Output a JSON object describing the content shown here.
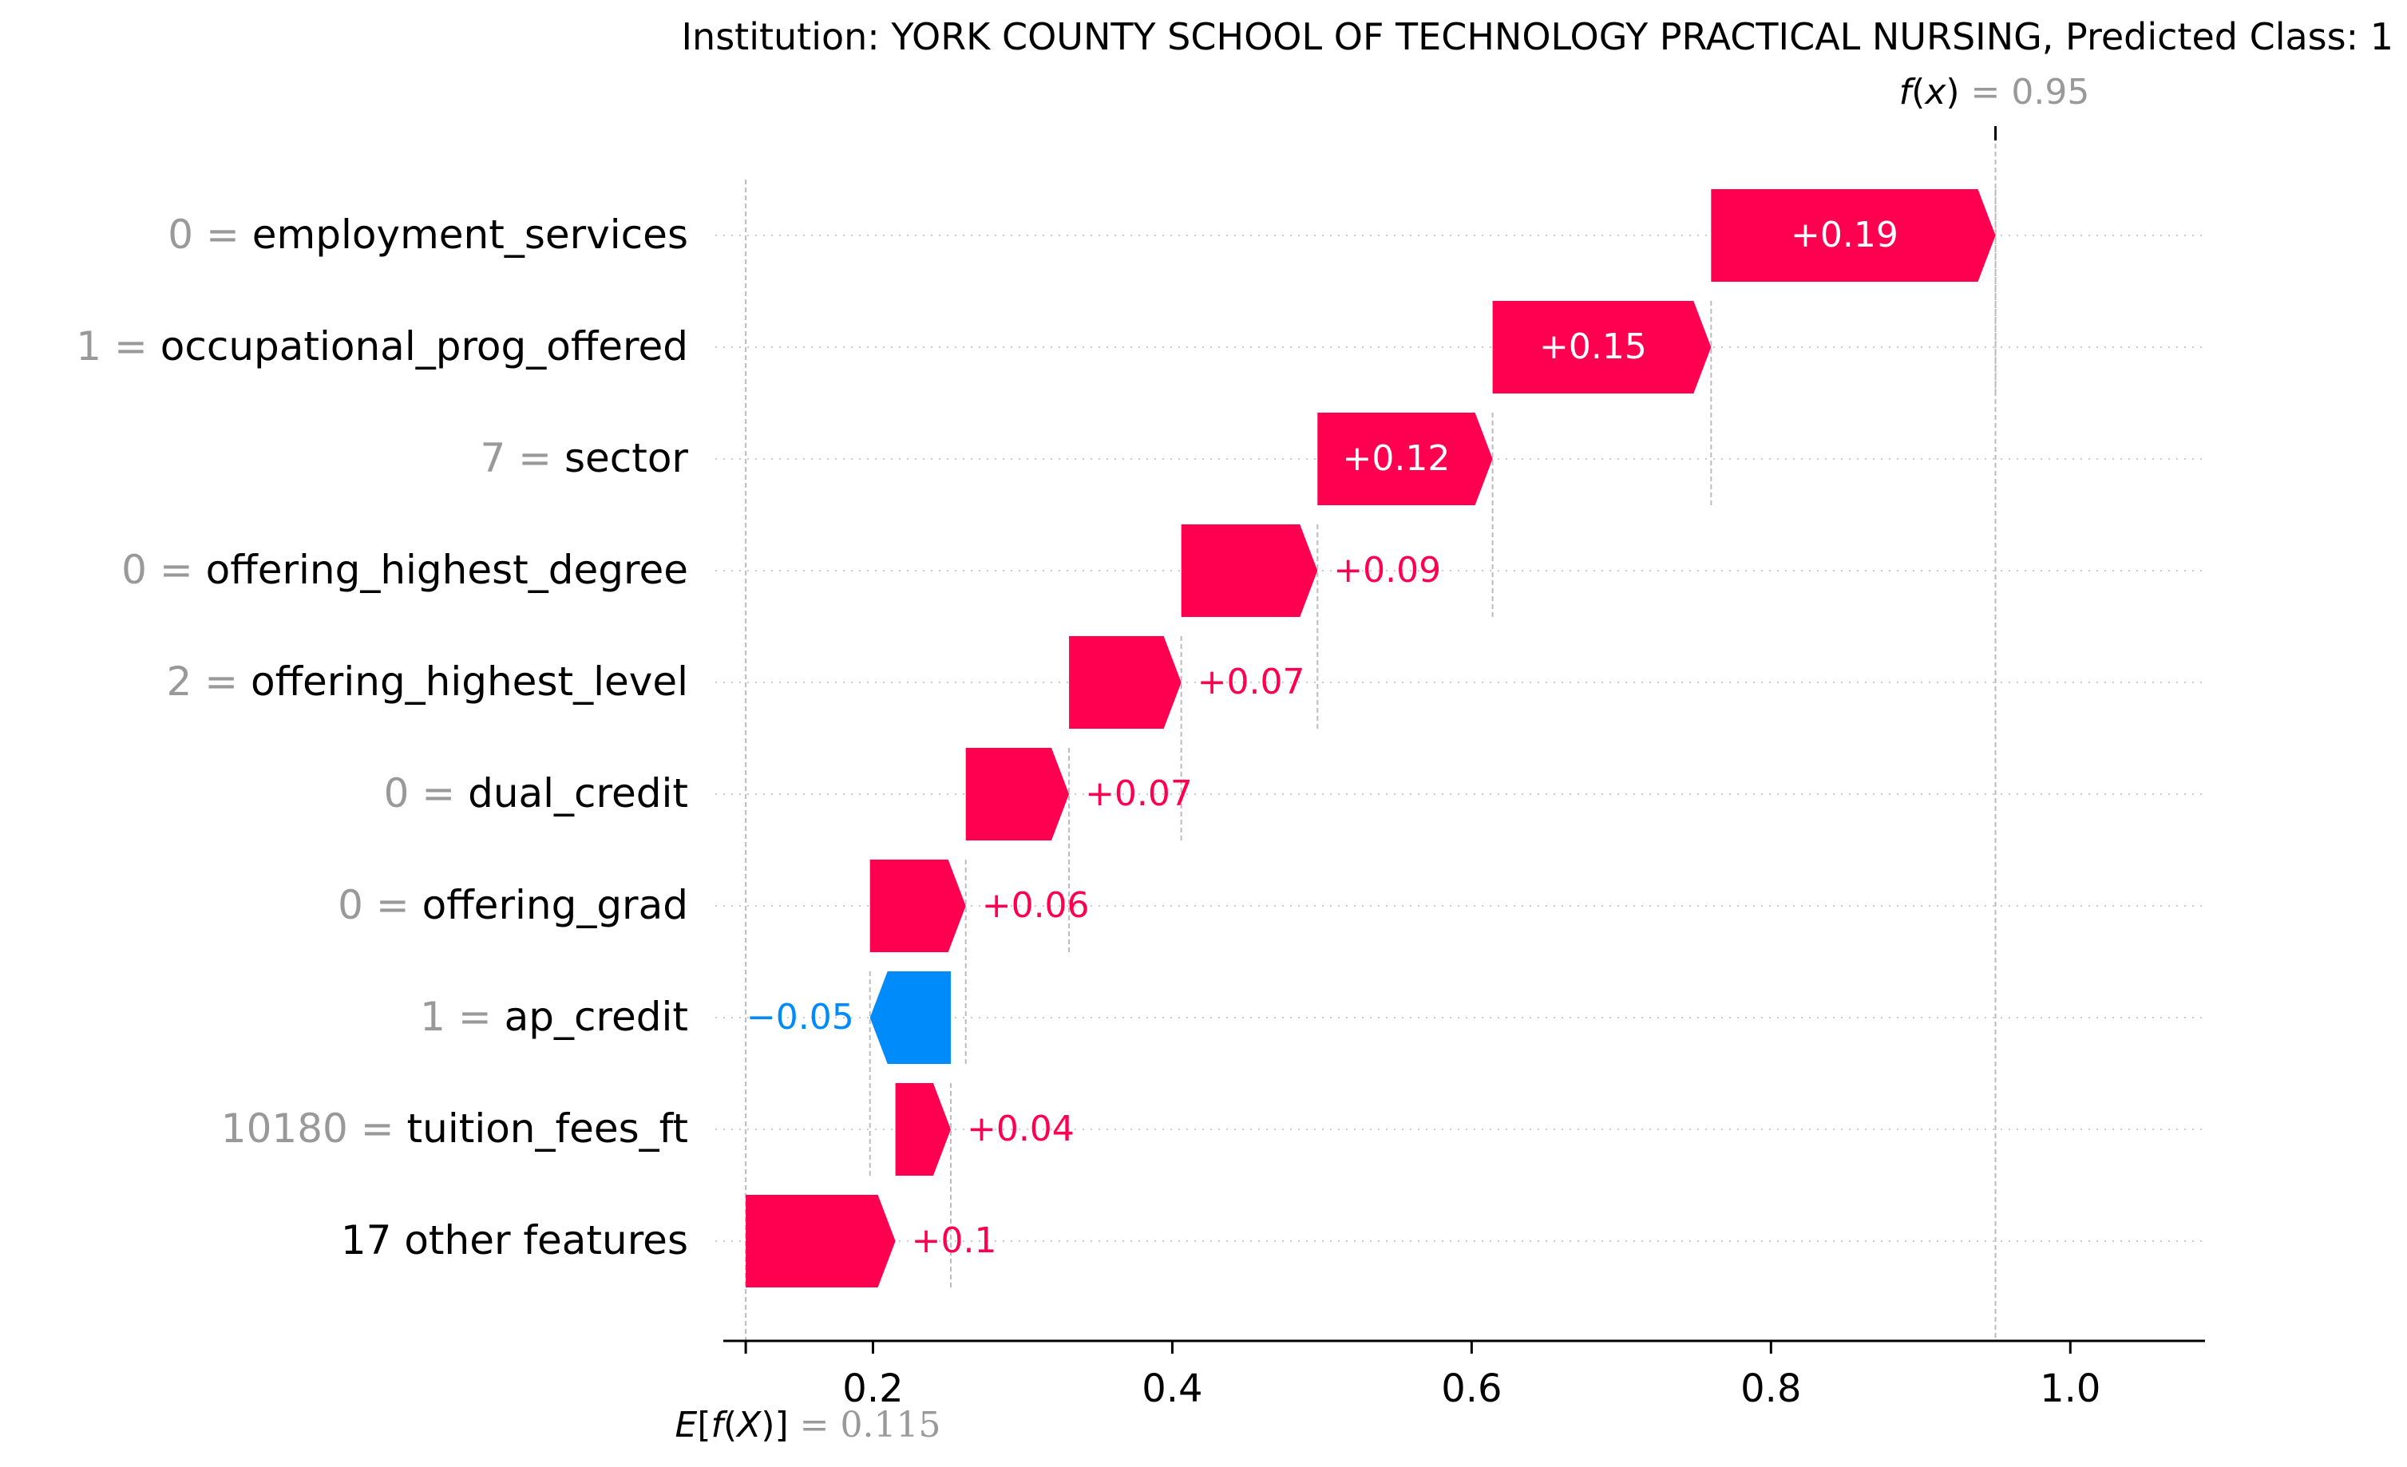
{
  "chart_data": {
    "type": "waterfall",
    "title": "Institution: YORK COUNTY SCHOOL OF TECHNOLOGY PRACTICAL NURSING, Predicted Class: 1",
    "base_value": 0.115,
    "base_value_label": "= 0.115",
    "output_value": 0.95,
    "output_value_label": "= 0.95",
    "xlim": [
      0.1,
      1.09
    ],
    "xticks": [
      {
        "value": 0.2,
        "label": "0.2"
      },
      {
        "value": 0.4,
        "label": "0.4"
      },
      {
        "value": 0.6,
        "label": "0.6"
      },
      {
        "value": 0.8,
        "label": "0.8"
      },
      {
        "value": 1.0,
        "label": "1.0"
      }
    ],
    "features": [
      {
        "feature_value": "0",
        "name": "employment_services",
        "start": 0.76,
        "end": 0.95,
        "label": "+0.19"
      },
      {
        "feature_value": "1",
        "name": "occupational_prog_offered",
        "start": 0.614,
        "end": 0.76,
        "label": "+0.15"
      },
      {
        "feature_value": "7",
        "name": "sector",
        "start": 0.497,
        "end": 0.614,
        "label": "+0.12"
      },
      {
        "feature_value": "0",
        "name": "offering_highest_degree",
        "start": 0.406,
        "end": 0.497,
        "label": "+0.09"
      },
      {
        "feature_value": "2",
        "name": "offering_highest_level",
        "start": 0.331,
        "end": 0.406,
        "label": "+0.07"
      },
      {
        "feature_value": "0",
        "name": "dual_credit",
        "start": 0.262,
        "end": 0.331,
        "label": "+0.07"
      },
      {
        "feature_value": "0",
        "name": "offering_grad",
        "start": 0.198,
        "end": 0.262,
        "label": "+0.06"
      },
      {
        "feature_value": "1",
        "name": "ap_credit",
        "start": 0.252,
        "end": 0.198,
        "label": "−0.05"
      },
      {
        "feature_value": "10180",
        "name": "tuition_fees_ft",
        "start": 0.215,
        "end": 0.252,
        "label": "+0.04"
      },
      {
        "feature_value": "",
        "name": "17 other features",
        "start": 0.115,
        "end": 0.215,
        "label": "+0.1"
      }
    ],
    "colors": {
      "positive": "#ff0051",
      "negative": "#008bfb",
      "label_gray": "#999999",
      "text": "#000000"
    }
  }
}
